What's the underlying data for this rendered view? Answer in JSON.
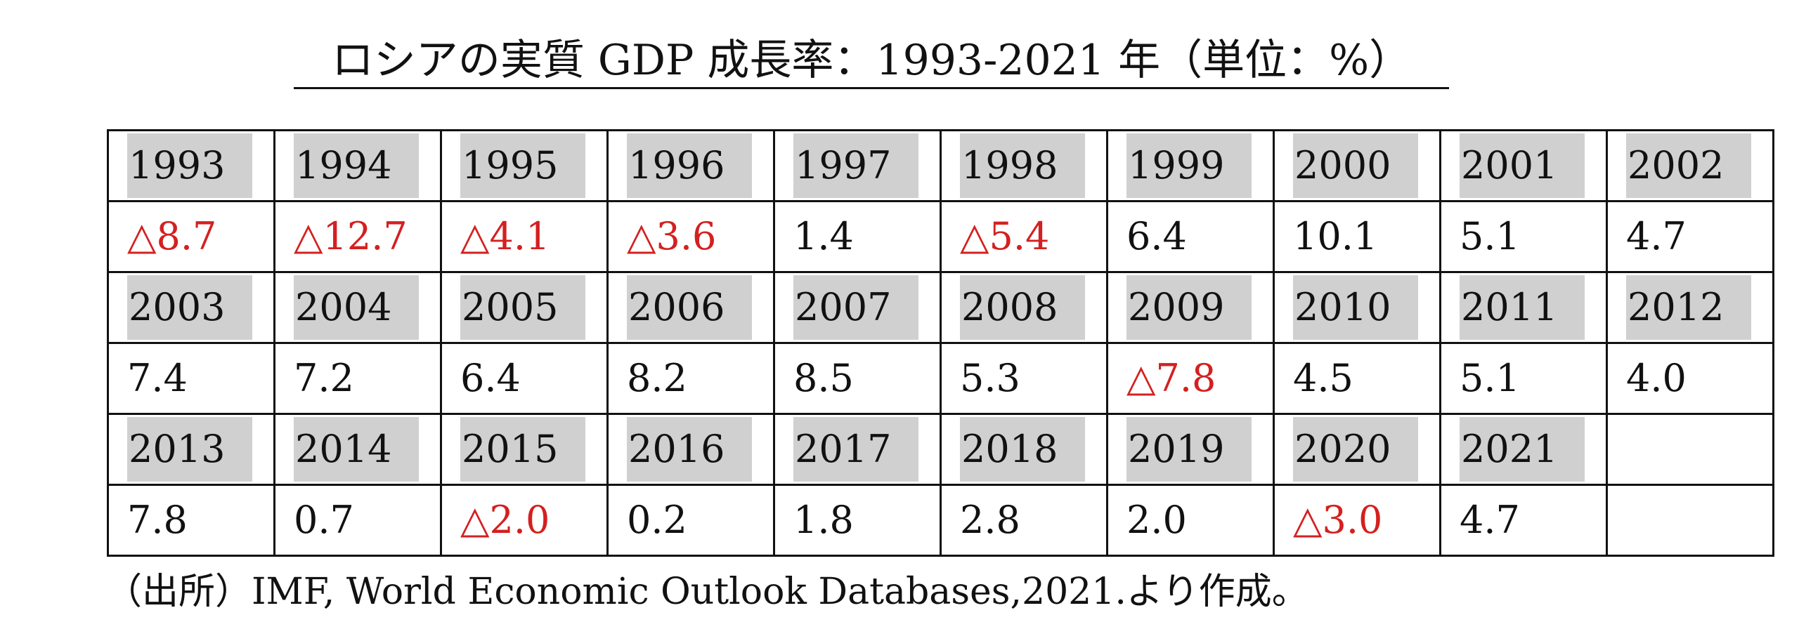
{
  "title": "ロシアの実質 GDP 成長率：1993-2021 年（単位：%）",
  "negative_color": "#d42020",
  "year_cell_bg": "#d0d0d0",
  "rows": [
    {
      "years": [
        "1993",
        "1994",
        "1995",
        "1996",
        "1997",
        "1998",
        "1999",
        "2000",
        "2001",
        "2002"
      ],
      "values": [
        {
          "text": "△8.7",
          "negative": true
        },
        {
          "text": "△12.7",
          "negative": true
        },
        {
          "text": "△4.1",
          "negative": true
        },
        {
          "text": "△3.6",
          "negative": true
        },
        {
          "text": "1.4",
          "negative": false
        },
        {
          "text": "△5.4",
          "negative": true
        },
        {
          "text": "6.4",
          "negative": false
        },
        {
          "text": "10.1",
          "negative": false
        },
        {
          "text": "5.1",
          "negative": false
        },
        {
          "text": "4.7",
          "negative": false
        }
      ]
    },
    {
      "years": [
        "2003",
        "2004",
        "2005",
        "2006",
        "2007",
        "2008",
        "2009",
        "2010",
        "2011",
        "2012"
      ],
      "values": [
        {
          "text": "7.4",
          "negative": false
        },
        {
          "text": "7.2",
          "negative": false
        },
        {
          "text": "6.4",
          "negative": false
        },
        {
          "text": "8.2",
          "negative": false
        },
        {
          "text": "8.5",
          "negative": false
        },
        {
          "text": "5.3",
          "negative": false
        },
        {
          "text": "△7.8",
          "negative": true
        },
        {
          "text": "4.5",
          "negative": false
        },
        {
          "text": "5.1",
          "negative": false
        },
        {
          "text": "4.0",
          "negative": false
        }
      ]
    },
    {
      "years": [
        "2013",
        "2014",
        "2015",
        "2016",
        "2017",
        "2018",
        "2019",
        "2020",
        "2021",
        ""
      ],
      "values": [
        {
          "text": "7.8",
          "negative": false
        },
        {
          "text": "0.7",
          "negative": false
        },
        {
          "text": "△2.0",
          "negative": true
        },
        {
          "text": "0.2",
          "negative": false
        },
        {
          "text": "1.8",
          "negative": false
        },
        {
          "text": "2.8",
          "negative": false
        },
        {
          "text": "2.0",
          "negative": false
        },
        {
          "text": "△3.0",
          "negative": true
        },
        {
          "text": "4.7",
          "negative": false
        },
        {
          "text": "",
          "negative": false
        }
      ]
    }
  ],
  "source": "（出所）IMF, World Economic Outlook Databases,2021.より作成。"
}
